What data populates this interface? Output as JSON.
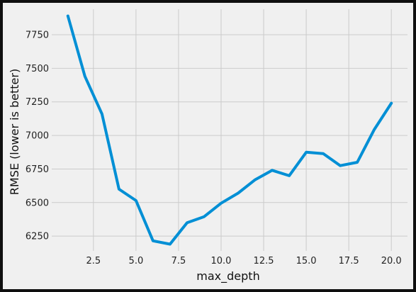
{
  "chart_data": {
    "type": "line",
    "title": "",
    "xlabel": "max_depth",
    "ylabel": "RMSE (lower is better)",
    "xlim": [
      0.05,
      20.95
    ],
    "ylim": [
      6140,
      7940
    ],
    "x_ticks": [
      2.5,
      5.0,
      7.5,
      10.0,
      12.5,
      15.0,
      17.5,
      20.0
    ],
    "x_tick_labels": [
      "2.5",
      "5.0",
      "7.5",
      "10.0",
      "12.5",
      "15.0",
      "17.5",
      "20.0"
    ],
    "y_ticks": [
      6250,
      6500,
      6750,
      7000,
      7250,
      7500,
      7750
    ],
    "y_tick_labels": [
      "6250",
      "6500",
      "6750",
      "7000",
      "7250",
      "7500",
      "7750"
    ],
    "grid": true,
    "series": [
      {
        "color": "#008fd5",
        "x": [
          1,
          2,
          3,
          4,
          5,
          6,
          7,
          8,
          9,
          10,
          11,
          12,
          13,
          14,
          15,
          16,
          17,
          18,
          19,
          20
        ],
        "y": [
          7890,
          7440,
          7160,
          6600,
          6515,
          6215,
          6190,
          6350,
          6395,
          6495,
          6570,
          6670,
          6740,
          6700,
          6875,
          6865,
          6775,
          6800,
          7045,
          7240
        ]
      }
    ]
  }
}
